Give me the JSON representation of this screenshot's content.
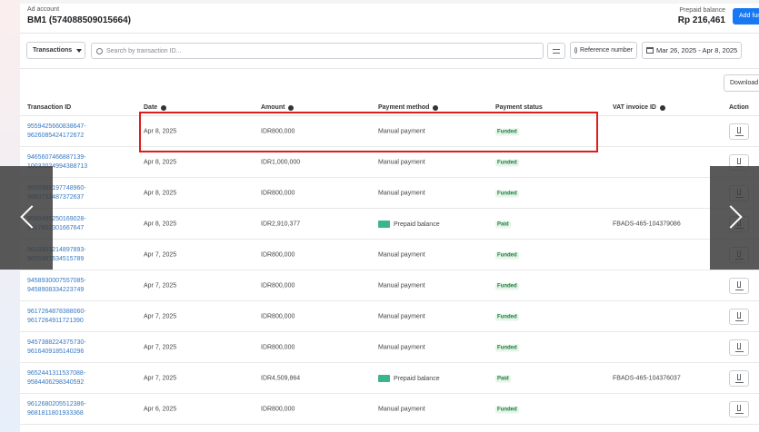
{
  "header": {
    "account_label": "Ad account",
    "account_name": "BM1 (574088509015664)",
    "balance_label": "Prepaid balance",
    "balance_value": "Rp 216,461",
    "add_funds": "Add funds"
  },
  "toolbar": {
    "type_select": "Transactions",
    "search_placeholder": "Search by transaction ID...",
    "reference": "Reference number",
    "date_range": "Mar 26, 2025 - Apr 8, 2025",
    "download": "Download"
  },
  "columns": [
    "Transaction ID",
    "Date",
    "Amount",
    "Payment method",
    "Payment status",
    "VAT invoice ID",
    "Action"
  ],
  "rows": [
    {
      "id1": "9559425660838647-",
      "id2": "9626085424172672",
      "date": "Apr 8, 2025",
      "amount": "IDR800,000",
      "method": "Manual payment",
      "prepaid": false,
      "status": "Funded",
      "vat": ""
    },
    {
      "id1": "9465607466887139-",
      "id2": "10032024994388713",
      "date": "Apr 8, 2025",
      "amount": "IDR1,000,000",
      "method": "Manual payment",
      "prepaid": false,
      "status": "Funded",
      "vat": ""
    },
    {
      "id1": "9556989197748960-",
      "id2": "9660752487372637",
      "date": "Apr 8, 2025",
      "amount": "IDR800,000",
      "method": "Manual payment",
      "prepaid": false,
      "status": "Funded",
      "vat": ""
    },
    {
      "id1": "9589495250169028-",
      "id2": "9617802301667647",
      "date": "Apr 8, 2025",
      "amount": "IDR2,910,377",
      "method": "Prepaid balance",
      "prepaid": true,
      "status": "Paid",
      "vat": "FBADS-465-104379086"
    },
    {
      "id1": "9618803214897893-",
      "id2": "9655987634515789",
      "date": "Apr 7, 2025",
      "amount": "IDR800,000",
      "method": "Manual payment",
      "prepaid": false,
      "status": "Funded",
      "vat": ""
    },
    {
      "id1": "9458930007557085-",
      "id2": "9458908334223749",
      "date": "Apr 7, 2025",
      "amount": "IDR800,000",
      "method": "Manual payment",
      "prepaid": false,
      "status": "Funded",
      "vat": ""
    },
    {
      "id1": "9617264878388060-",
      "id2": "9617264911721390",
      "date": "Apr 7, 2025",
      "amount": "IDR800,000",
      "method": "Manual payment",
      "prepaid": false,
      "status": "Funded",
      "vat": ""
    },
    {
      "id1": "9457388224375730-",
      "id2": "9616409185140296",
      "date": "Apr 7, 2025",
      "amount": "IDR800,000",
      "method": "Manual payment",
      "prepaid": false,
      "status": "Funded",
      "vat": ""
    },
    {
      "id1": "9652441311537088-",
      "id2": "9584406298340592",
      "date": "Apr 7, 2025",
      "amount": "IDR4,509,864",
      "method": "Prepaid balance",
      "prepaid": true,
      "status": "Paid",
      "vat": "FBADS-465-104376037"
    },
    {
      "id1": "9612680205512386-",
      "id2": "9681811801933368",
      "date": "Apr 6, 2025",
      "amount": "IDR800,000",
      "method": "Manual payment",
      "prepaid": false,
      "status": "Funded",
      "vat": ""
    }
  ],
  "colors": {
    "accent": "#1877f2",
    "highlight": "#e01b1b",
    "link": "#3578c4",
    "funded": "#1d7d3f"
  }
}
